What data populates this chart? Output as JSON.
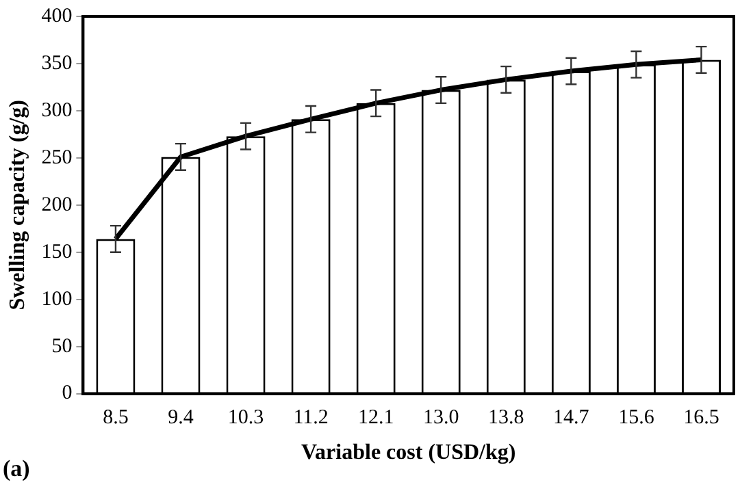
{
  "chart_data": {
    "type": "bar",
    "xlabel": "Variable cost (USD/kg)",
    "ylabel": "Swelling capacity (g/g)",
    "annotations": [
      "(a)"
    ],
    "categories": [
      "8.5",
      "9.4",
      "10.3",
      "11.2",
      "12.1",
      "13.0",
      "13.8",
      "14.7",
      "15.6",
      "16.5"
    ],
    "series": [
      {
        "color": "#ffffff",
        "values": [
          164,
          251,
          273,
          291,
          308,
          322,
          333,
          342,
          349,
          354
        ],
        "errors": [
          14,
          14,
          14,
          14,
          14,
          14,
          14,
          14,
          14,
          14
        ]
      },
      {
        "type": "line",
        "color": "#000000",
        "values": [
          164,
          251,
          273,
          291,
          308,
          322,
          333,
          342,
          349,
          354
        ]
      }
    ],
    "ylim": [
      0,
      400
    ],
    "yticks": [
      0,
      50,
      100,
      150,
      200,
      250,
      300,
      350,
      400
    ],
    "grid": false,
    "legend": false,
    "marker": "none",
    "line_style": "solid"
  }
}
